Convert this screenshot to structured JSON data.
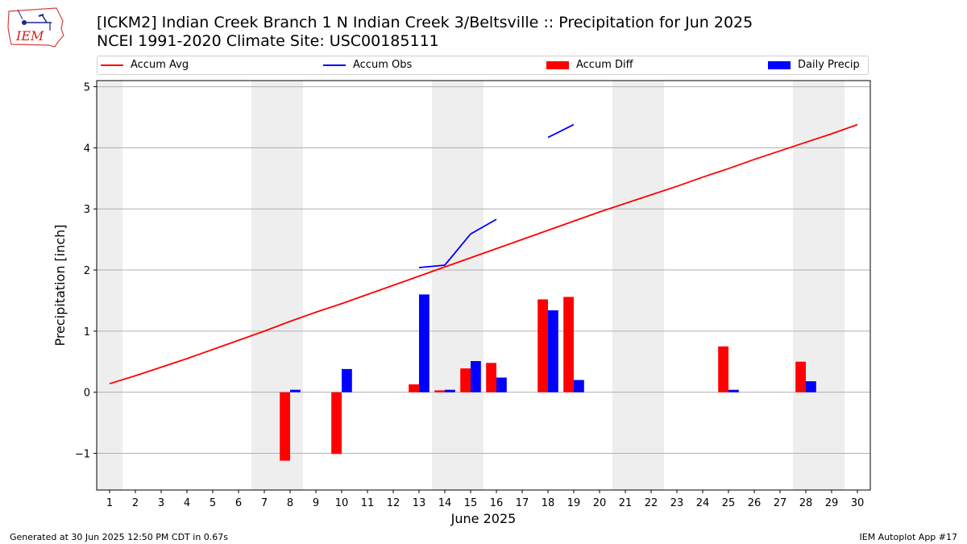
{
  "header": {
    "logo_text": "IEM",
    "title_line1": "[ICKM2] Indian Creek Branch 1 N Indian Creek 3/Beltsville :: Precipitation for Jun 2025",
    "title_line2": "NCEI 1991-2020 Climate Site: USC00185111"
  },
  "legend": {
    "accum_avg": "Accum Avg",
    "accum_obs": "Accum Obs",
    "accum_diff": "Accum Diff",
    "daily_precip": "Daily Precip"
  },
  "colors": {
    "avg": "#ff0000",
    "obs": "#0000ff",
    "diff": "#ff0000",
    "daily": "#0000ff",
    "weekend_shade": "#eeeeee",
    "grid": "#b0b0b0"
  },
  "chart_data": {
    "type": "bar",
    "title": "[ICKM2] Indian Creek Branch 1 N Indian Creek 3/Beltsville :: Precipitation for Jun 2025",
    "xlabel": "June 2025",
    "ylabel": "Precipitation [inch]",
    "xlim": [
      0.5,
      30.5
    ],
    "ylim": [
      -1.6,
      5.1
    ],
    "yticks": [
      -1,
      0,
      1,
      2,
      3,
      4,
      5
    ],
    "ytick_labels": [
      "−1",
      "0",
      "1",
      "2",
      "3",
      "4",
      "5"
    ],
    "days": [
      1,
      2,
      3,
      4,
      5,
      6,
      7,
      8,
      9,
      10,
      11,
      12,
      13,
      14,
      15,
      16,
      17,
      18,
      19,
      20,
      21,
      22,
      23,
      24,
      25,
      26,
      27,
      28,
      29,
      30
    ],
    "weekend_spans": [
      [
        0.5,
        1.5
      ],
      [
        6.5,
        8.5
      ],
      [
        13.5,
        15.5
      ],
      [
        20.5,
        22.5
      ],
      [
        27.5,
        29.5
      ]
    ],
    "series": [
      {
        "name": "Accum Avg",
        "type": "line",
        "values": [
          0.14,
          0.27,
          0.41,
          0.55,
          0.7,
          0.85,
          1.0,
          1.16,
          1.31,
          1.45,
          1.6,
          1.75,
          1.9,
          2.05,
          2.2,
          2.35,
          2.5,
          2.65,
          2.8,
          2.95,
          3.09,
          3.23,
          3.37,
          3.52,
          3.66,
          3.81,
          3.95,
          4.09,
          4.23,
          4.38
        ]
      },
      {
        "name": "Accum Obs",
        "type": "line",
        "values": [
          null,
          null,
          null,
          null,
          null,
          null,
          null,
          null,
          null,
          null,
          null,
          null,
          2.04,
          2.08,
          2.59,
          2.83,
          null,
          4.17,
          4.38,
          null,
          null,
          null,
          null,
          null,
          null,
          null,
          null,
          null,
          null,
          null
        ]
      },
      {
        "name": "Accum Diff",
        "type": "bar",
        "values": [
          null,
          null,
          null,
          null,
          null,
          null,
          null,
          -1.12,
          null,
          -1.01,
          null,
          null,
          0.13,
          0.03,
          0.39,
          0.48,
          null,
          1.52,
          1.56,
          null,
          null,
          null,
          null,
          null,
          0.75,
          null,
          null,
          0.5,
          null,
          null
        ]
      },
      {
        "name": "Daily Precip",
        "type": "bar",
        "values": [
          null,
          null,
          null,
          null,
          null,
          null,
          null,
          0.04,
          null,
          0.38,
          null,
          null,
          1.6,
          0.04,
          0.51,
          0.24,
          null,
          1.34,
          0.2,
          null,
          null,
          null,
          null,
          null,
          0.04,
          null,
          null,
          0.18,
          null,
          null
        ]
      }
    ]
  },
  "footer": {
    "generated": "Generated at 30 Jun 2025 12:50 PM CDT in 0.67s",
    "app": "IEM Autoplot App #17"
  }
}
